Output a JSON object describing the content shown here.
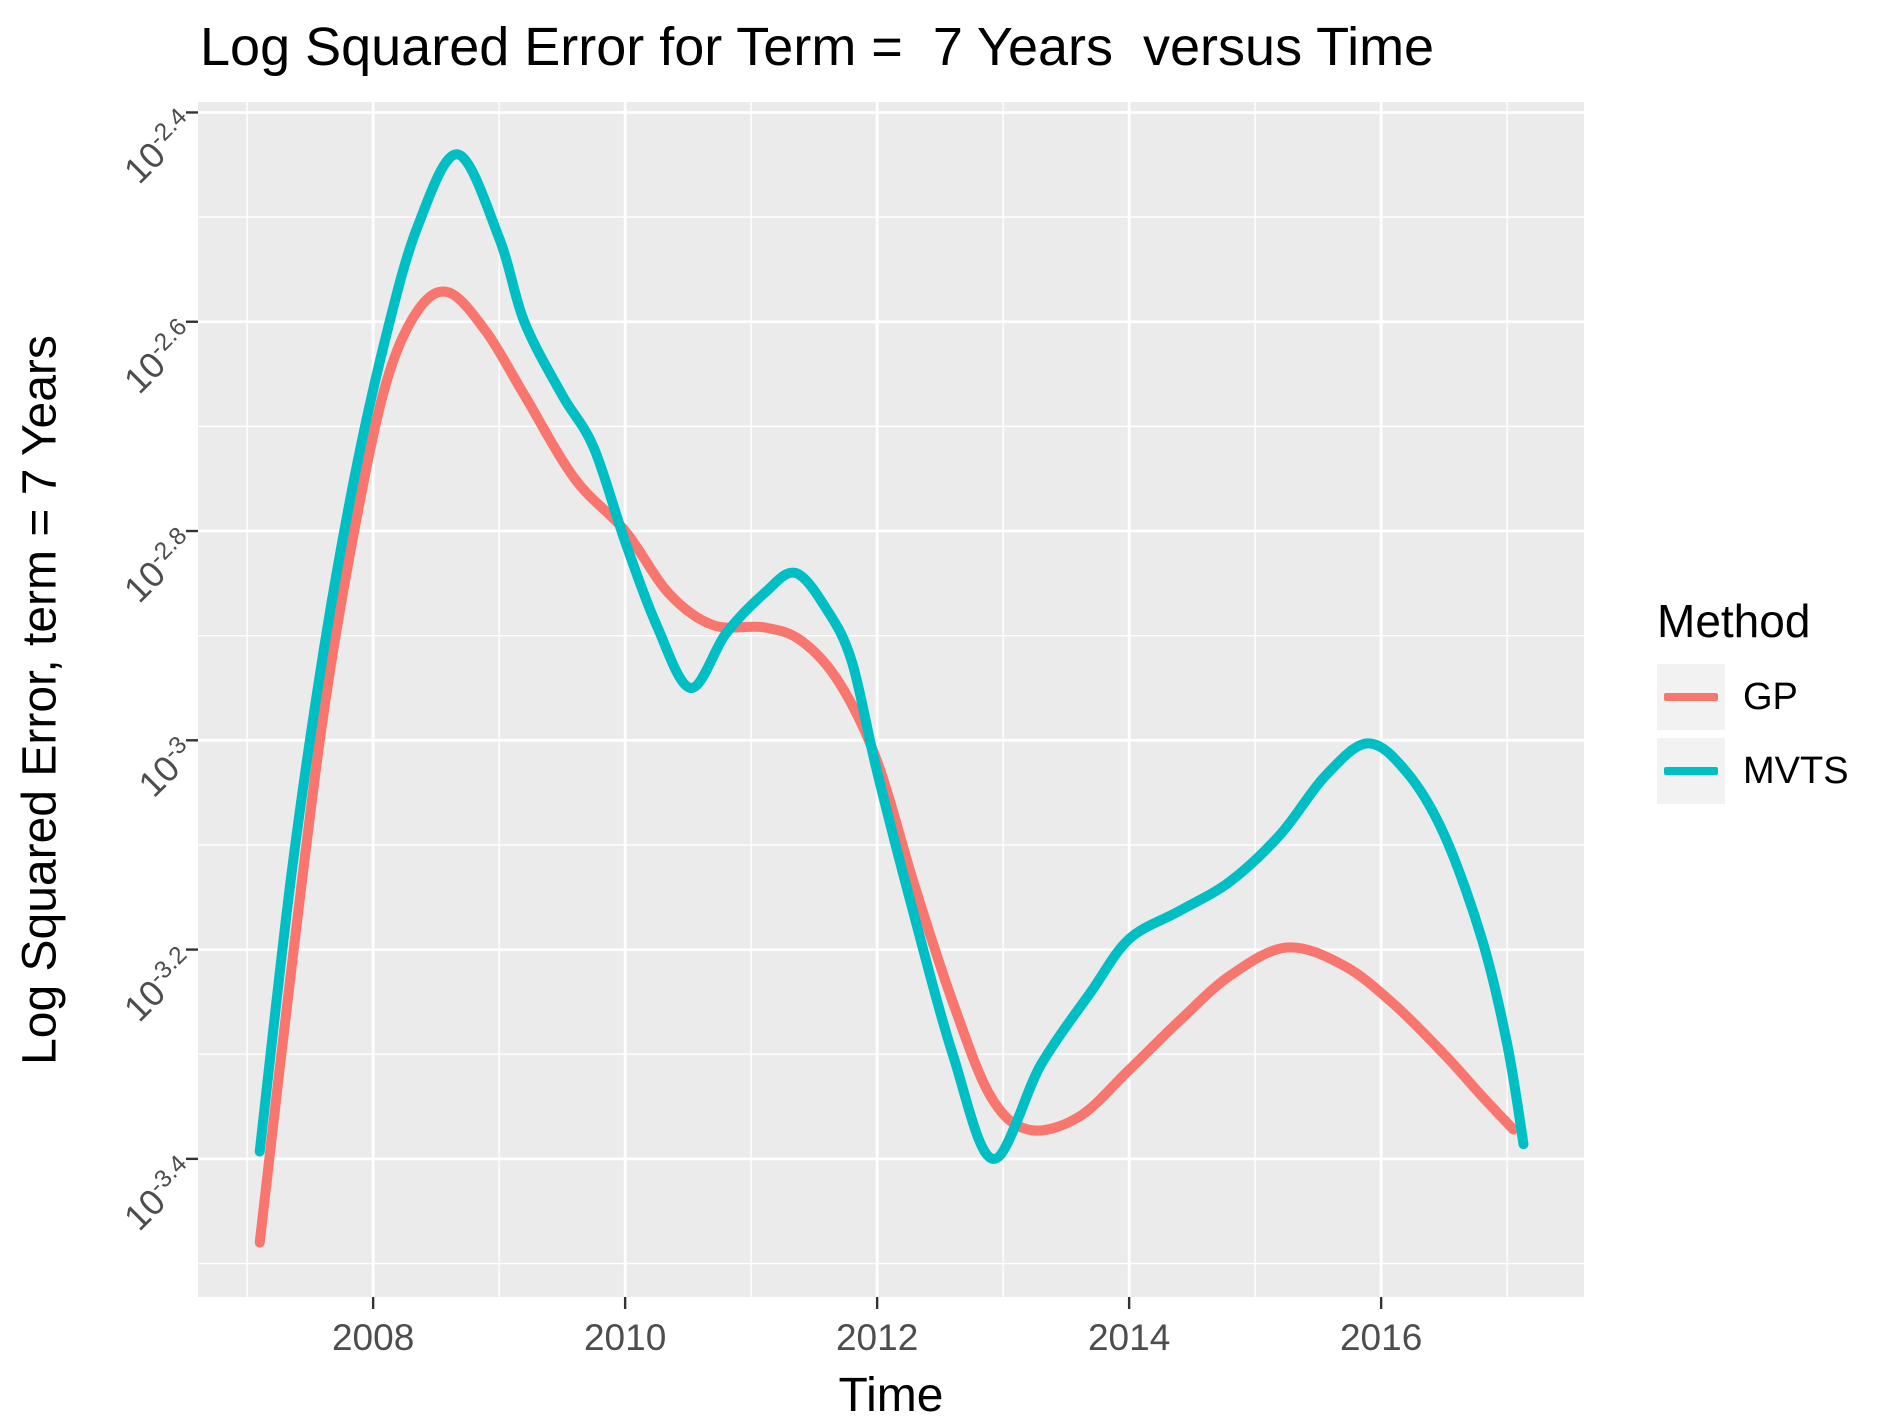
{
  "chart_data": {
    "type": "line",
    "title": "Log Squared Error for Term =  7 Years  versus Time",
    "xlabel": "Time",
    "ylabel": "Log Squared Error, term = 7 Years",
    "x_axis": {
      "domain": [
        2006.61,
        2017.61
      ],
      "major_ticks": [
        2008,
        2010,
        2012,
        2014,
        2016
      ],
      "minor_ticks": [
        2007,
        2009,
        2011,
        2013,
        2015,
        2017
      ]
    },
    "y_axis": {
      "scale": "log10",
      "domain_exponents": [
        -3.532,
        -2.39
      ],
      "major_ticks": [
        {
          "value": -2.4,
          "label_base": "10",
          "label_exponent": "-2.4"
        },
        {
          "value": -2.6,
          "label_base": "10",
          "label_exponent": "-2.6"
        },
        {
          "value": -2.8,
          "label_base": "10",
          "label_exponent": "-2.8"
        },
        {
          "value": -3.0,
          "label_base": "10",
          "label_exponent": "-3"
        },
        {
          "value": -3.2,
          "label_base": "10",
          "label_exponent": "-3.2"
        },
        {
          "value": -3.4,
          "label_base": "10",
          "label_exponent": "-3.4"
        }
      ],
      "minor_ticks": [
        -2.5,
        -2.7,
        -2.9,
        -3.1,
        -3.3,
        -3.5
      ]
    },
    "legend": {
      "title": "Method",
      "entries": [
        {
          "label": "GP",
          "color": "#F8766D"
        },
        {
          "label": "MVTS",
          "color": "#00BFC4"
        }
      ]
    },
    "style": {
      "panel_fill": "#EBEBEB",
      "grid_color": "#FFFFFF",
      "tick_color": "#333333",
      "tick_label_color": "#4D4D4D",
      "legend_key_fill": "#F2F2F2"
    },
    "series": [
      {
        "name": "GP",
        "color": "#F8766D",
        "points": [
          [
            2007.1,
            -3.48
          ],
          [
            2007.35,
            -3.22
          ],
          [
            2007.6,
            -2.98
          ],
          [
            2007.85,
            -2.8
          ],
          [
            2008.1,
            -2.66
          ],
          [
            2008.35,
            -2.59
          ],
          [
            2008.6,
            -2.572
          ],
          [
            2008.9,
            -2.61
          ],
          [
            2009.2,
            -2.67
          ],
          [
            2009.6,
            -2.75
          ],
          [
            2010.0,
            -2.8
          ],
          [
            2010.35,
            -2.86
          ],
          [
            2010.7,
            -2.89
          ],
          [
            2011.1,
            -2.892
          ],
          [
            2011.4,
            -2.905
          ],
          [
            2011.7,
            -2.945
          ],
          [
            2012.0,
            -3.02
          ],
          [
            2012.3,
            -3.14
          ],
          [
            2012.6,
            -3.25
          ],
          [
            2012.9,
            -3.34
          ],
          [
            2013.2,
            -3.372
          ],
          [
            2013.6,
            -3.36
          ],
          [
            2014.0,
            -3.315
          ],
          [
            2014.4,
            -3.268
          ],
          [
            2014.8,
            -3.225
          ],
          [
            2015.25,
            -3.198
          ],
          [
            2015.7,
            -3.215
          ],
          [
            2016.1,
            -3.252
          ],
          [
            2016.5,
            -3.3
          ],
          [
            2016.8,
            -3.34
          ],
          [
            2017.05,
            -3.372
          ]
        ]
      },
      {
        "name": "MVTS",
        "color": "#00BFC4",
        "points": [
          [
            2007.1,
            -3.393
          ],
          [
            2007.35,
            -3.13
          ],
          [
            2007.6,
            -2.92
          ],
          [
            2007.85,
            -2.75
          ],
          [
            2008.1,
            -2.615
          ],
          [
            2008.35,
            -2.51
          ],
          [
            2008.67,
            -2.44
          ],
          [
            2009.0,
            -2.52
          ],
          [
            2009.2,
            -2.6
          ],
          [
            2009.5,
            -2.67
          ],
          [
            2009.75,
            -2.72
          ],
          [
            2010.0,
            -2.81
          ],
          [
            2010.25,
            -2.89
          ],
          [
            2010.52,
            -2.95
          ],
          [
            2010.8,
            -2.898
          ],
          [
            2011.1,
            -2.86
          ],
          [
            2011.35,
            -2.84
          ],
          [
            2011.6,
            -2.875
          ],
          [
            2011.8,
            -2.925
          ],
          [
            2012.0,
            -3.03
          ],
          [
            2012.3,
            -3.17
          ],
          [
            2012.6,
            -3.3
          ],
          [
            2012.92,
            -3.4
          ],
          [
            2013.3,
            -3.31
          ],
          [
            2013.7,
            -3.24
          ],
          [
            2014.0,
            -3.19
          ],
          [
            2014.4,
            -3.163
          ],
          [
            2014.8,
            -3.135
          ],
          [
            2015.2,
            -3.09
          ],
          [
            2015.55,
            -3.035
          ],
          [
            2015.89,
            -3.003
          ],
          [
            2016.2,
            -3.03
          ],
          [
            2016.5,
            -3.09
          ],
          [
            2016.8,
            -3.19
          ],
          [
            2017.0,
            -3.29
          ],
          [
            2017.13,
            -3.386
          ]
        ]
      }
    ]
  }
}
